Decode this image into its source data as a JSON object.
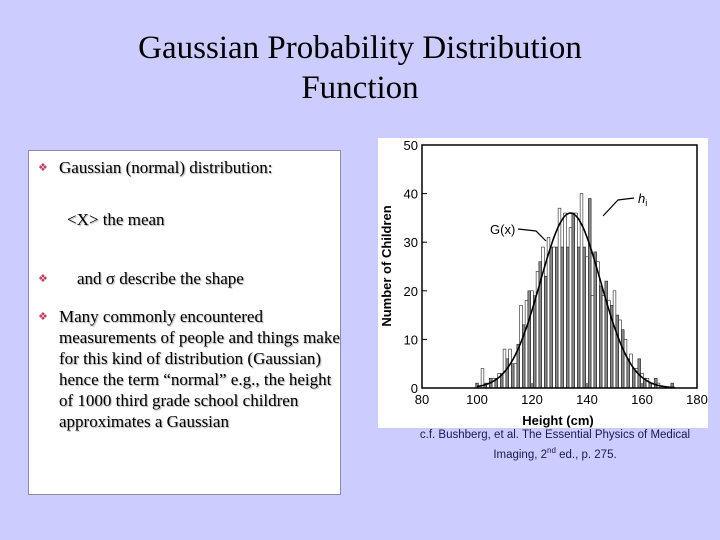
{
  "slide": {
    "title_line1": "Gaussian Probability Distribution",
    "title_line2": "Function",
    "bullets": [
      {
        "text": "Gaussian (normal) distribution:",
        "bullet": "diamond-bullet-icon"
      },
      {
        "text": "<X> the mean",
        "bullet": null
      },
      {
        "text": "and σ describe the shape",
        "bullet": "diamond-bullet-icon"
      },
      {
        "text": "Many commonly encountered measurements of people and things make for this kind of distribution (Gaussian) hence the term “normal” e.g., the height of 1000 third grade school children approximates a Gaussian",
        "bullet": "diamond-bullet-icon"
      }
    ],
    "caption_line1": "c.f. Bushberg, et al. The Essential Physics of Medical",
    "caption_line2_pre": "Imaging, 2",
    "caption_sup": "nd",
    "caption_line2_post": " ed., p. 275.",
    "bullet_color": "#c04060",
    "background_color": "#ccccff"
  },
  "chart_data": {
    "type": "bar",
    "xlabel": "Height (cm)",
    "ylabel": "Number of Children",
    "xlim": [
      80,
      180
    ],
    "ylim": [
      0,
      50
    ],
    "xticks": [
      "80",
      "100",
      "120",
      "140",
      "160",
      "180"
    ],
    "yticks": [
      "0",
      "10",
      "20",
      "30",
      "40",
      "50"
    ],
    "annotations": [
      "G(x)",
      "h"
    ],
    "annotation_sub": "i",
    "x": [
      100,
      101,
      102,
      103,
      104,
      105,
      106,
      107,
      108,
      109,
      110,
      111,
      112,
      113,
      114,
      115,
      116,
      117,
      118,
      119,
      120,
      121,
      122,
      123,
      124,
      125,
      126,
      127,
      128,
      129,
      130,
      131,
      132,
      133,
      134,
      135,
      136,
      137,
      138,
      139,
      140,
      141,
      142,
      143,
      144,
      145,
      146,
      147,
      148,
      149,
      150,
      151,
      152,
      153,
      154,
      155,
      156,
      157,
      158,
      159,
      160,
      161,
      162,
      163,
      164,
      165,
      166,
      167,
      168,
      169,
      170,
      171
    ],
    "values": [
      1,
      0,
      4,
      1,
      1,
      2,
      2,
      2,
      3,
      3,
      8,
      6,
      8,
      5,
      5,
      9,
      17,
      13,
      18,
      20,
      20,
      19,
      24,
      26,
      29,
      23,
      31,
      29,
      29,
      29,
      37,
      29,
      36,
      29,
      33,
      36,
      36,
      29,
      40,
      29,
      27,
      39,
      19,
      28,
      26,
      21,
      19,
      22,
      18,
      17,
      20,
      15,
      14,
      12,
      10,
      6,
      7,
      4,
      4,
      6,
      3,
      2,
      2,
      1,
      1,
      2,
      1,
      0,
      0,
      0,
      0,
      1
    ],
    "fit": {
      "name": "G(x)",
      "mean": 134,
      "sigma": 11,
      "peak": 36
    }
  }
}
